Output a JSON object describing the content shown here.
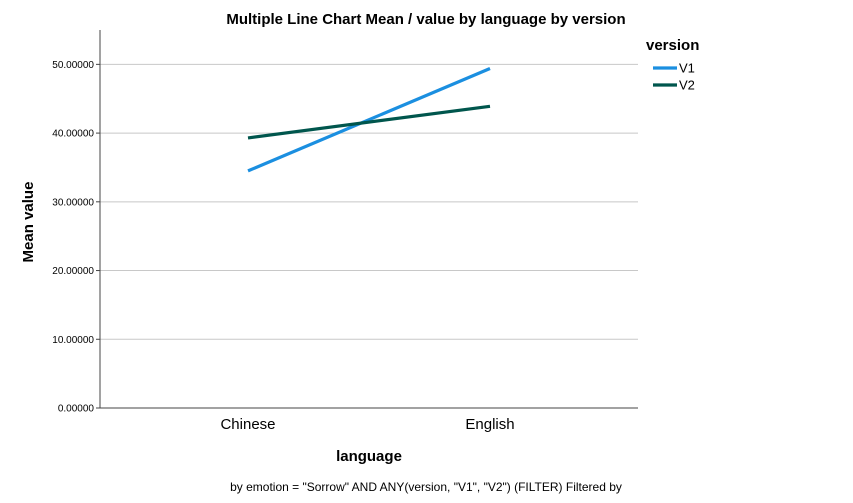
{
  "chart_data": {
    "type": "line",
    "title": "Multiple Line Chart Mean /  value by language by version",
    "xlabel": "language",
    "ylabel": "Mean value",
    "categories": [
      "Chinese",
      "English"
    ],
    "ylim": [
      0,
      55
    ],
    "yticks": [
      "0.00000",
      "10.00000",
      "20.00000",
      "30.00000",
      "40.00000",
      "50.00000"
    ],
    "ytick_values": [
      0,
      10,
      20,
      30,
      40,
      50
    ],
    "grid": true,
    "legend": {
      "title": "version",
      "placement": "top-right"
    },
    "series": [
      {
        "name": "V1",
        "values": [
          34.5,
          49.4
        ],
        "color": "#1b8fe0"
      },
      {
        "name": "V2",
        "values": [
          39.3,
          43.9
        ],
        "color": "#00564d"
      }
    ],
    "footnote": "by emotion = \"Sorrow\" AND ANY(version, \"V1\", \"V2\") (FILTER) Filtered by"
  }
}
